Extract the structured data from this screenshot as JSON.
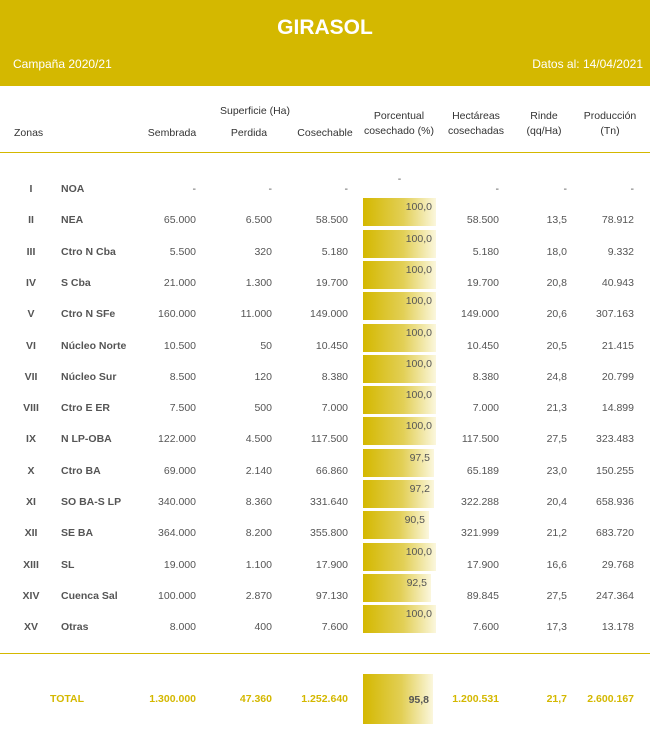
{
  "header": {
    "title": "GIRASOL",
    "campaign": "Campaña 2020/21",
    "date": "Datos al: 14/04/2021"
  },
  "columns": {
    "zonas": "Zonas",
    "superficie": "Superficie (Ha)",
    "sembrada": "Sembrada",
    "perdida": "Perdida",
    "cosechable": "Cosechable",
    "porcentual_1": "Porcentual",
    "porcentual_2": "cosechado (%)",
    "hectareas_1": "Hectáreas",
    "hectareas_2": "cosechadas",
    "rinde_1": "Rinde",
    "rinde_2": "(qq/Ha)",
    "produccion_1": "Producción",
    "produccion_2": "(Tn)"
  },
  "rows": [
    {
      "num": "I",
      "zona": "NOA",
      "sembrada": "-",
      "perdida": "-",
      "cosechable": "-",
      "pct": "-",
      "pct_value": 0,
      "hectareas": "-",
      "rinde": "-",
      "produccion": "-"
    },
    {
      "num": "II",
      "zona": "NEA",
      "sembrada": "65.000",
      "perdida": "6.500",
      "cosechable": "58.500",
      "pct": "100,0",
      "pct_value": 100,
      "hectareas": "58.500",
      "rinde": "13,5",
      "produccion": "78.912"
    },
    {
      "num": "III",
      "zona": "Ctro N Cba",
      "sembrada": "5.500",
      "perdida": "320",
      "cosechable": "5.180",
      "pct": "100,0",
      "pct_value": 100,
      "hectareas": "5.180",
      "rinde": "18,0",
      "produccion": "9.332"
    },
    {
      "num": "IV",
      "zona": "S Cba",
      "sembrada": "21.000",
      "perdida": "1.300",
      "cosechable": "19.700",
      "pct": "100,0",
      "pct_value": 100,
      "hectareas": "19.700",
      "rinde": "20,8",
      "produccion": "40.943"
    },
    {
      "num": "V",
      "zona": "Ctro N SFe",
      "sembrada": "160.000",
      "perdida": "11.000",
      "cosechable": "149.000",
      "pct": "100,0",
      "pct_value": 100,
      "hectareas": "149.000",
      "rinde": "20,6",
      "produccion": "307.163"
    },
    {
      "num": "VI",
      "zona": "Núcleo Norte",
      "sembrada": "10.500",
      "perdida": "50",
      "cosechable": "10.450",
      "pct": "100,0",
      "pct_value": 100,
      "hectareas": "10.450",
      "rinde": "20,5",
      "produccion": "21.415"
    },
    {
      "num": "VII",
      "zona": "Núcleo Sur",
      "sembrada": "8.500",
      "perdida": "120",
      "cosechable": "8.380",
      "pct": "100,0",
      "pct_value": 100,
      "hectareas": "8.380",
      "rinde": "24,8",
      "produccion": "20.799"
    },
    {
      "num": "VIII",
      "zona": "Ctro E ER",
      "sembrada": "7.500",
      "perdida": "500",
      "cosechable": "7.000",
      "pct": "100,0",
      "pct_value": 100,
      "hectareas": "7.000",
      "rinde": "21,3",
      "produccion": "14.899"
    },
    {
      "num": "IX",
      "zona": "N LP-OBA",
      "sembrada": "122.000",
      "perdida": "4.500",
      "cosechable": "117.500",
      "pct": "100,0",
      "pct_value": 100,
      "hectareas": "117.500",
      "rinde": "27,5",
      "produccion": "323.483"
    },
    {
      "num": "X",
      "zona": "Ctro BA",
      "sembrada": "69.000",
      "perdida": "2.140",
      "cosechable": "66.860",
      "pct": "97,5",
      "pct_value": 97.5,
      "hectareas": "65.189",
      "rinde": "23,0",
      "produccion": "150.255"
    },
    {
      "num": "XI",
      "zona": "SO BA-S LP",
      "sembrada": "340.000",
      "perdida": "8.360",
      "cosechable": "331.640",
      "pct": "97,2",
      "pct_value": 97.2,
      "hectareas": "322.288",
      "rinde": "20,4",
      "produccion": "658.936"
    },
    {
      "num": "XII",
      "zona": "SE BA",
      "sembrada": "364.000",
      "perdida": "8.200",
      "cosechable": "355.800",
      "pct": "90,5",
      "pct_value": 90.5,
      "hectareas": "321.999",
      "rinde": "21,2",
      "produccion": "683.720"
    },
    {
      "num": "XIII",
      "zona": "SL",
      "sembrada": "19.000",
      "perdida": "1.100",
      "cosechable": "17.900",
      "pct": "100,0",
      "pct_value": 100,
      "hectareas": "17.900",
      "rinde": "16,6",
      "produccion": "29.768"
    },
    {
      "num": "XIV",
      "zona": "Cuenca Sal",
      "sembrada": "100.000",
      "perdida": "2.870",
      "cosechable": "97.130",
      "pct": "92,5",
      "pct_value": 92.5,
      "hectareas": "89.845",
      "rinde": "27,5",
      "produccion": "247.364"
    },
    {
      "num": "XV",
      "zona": "Otras",
      "sembrada": "8.000",
      "perdida": "400",
      "cosechable": "7.600",
      "pct": "100,0",
      "pct_value": 100,
      "hectareas": "7.600",
      "rinde": "17,3",
      "produccion": "13.178"
    }
  ],
  "total": {
    "label": "TOTAL",
    "sembrada": "1.300.000",
    "perdida": "47.360",
    "cosechable": "1.252.640",
    "pct": "95,8",
    "pct_value": 95.8,
    "hectareas": "1.200.531",
    "rinde": "21,7",
    "produccion": "2.600.167"
  },
  "colors": {
    "accent": "#d4b800",
    "text": "#555555"
  }
}
